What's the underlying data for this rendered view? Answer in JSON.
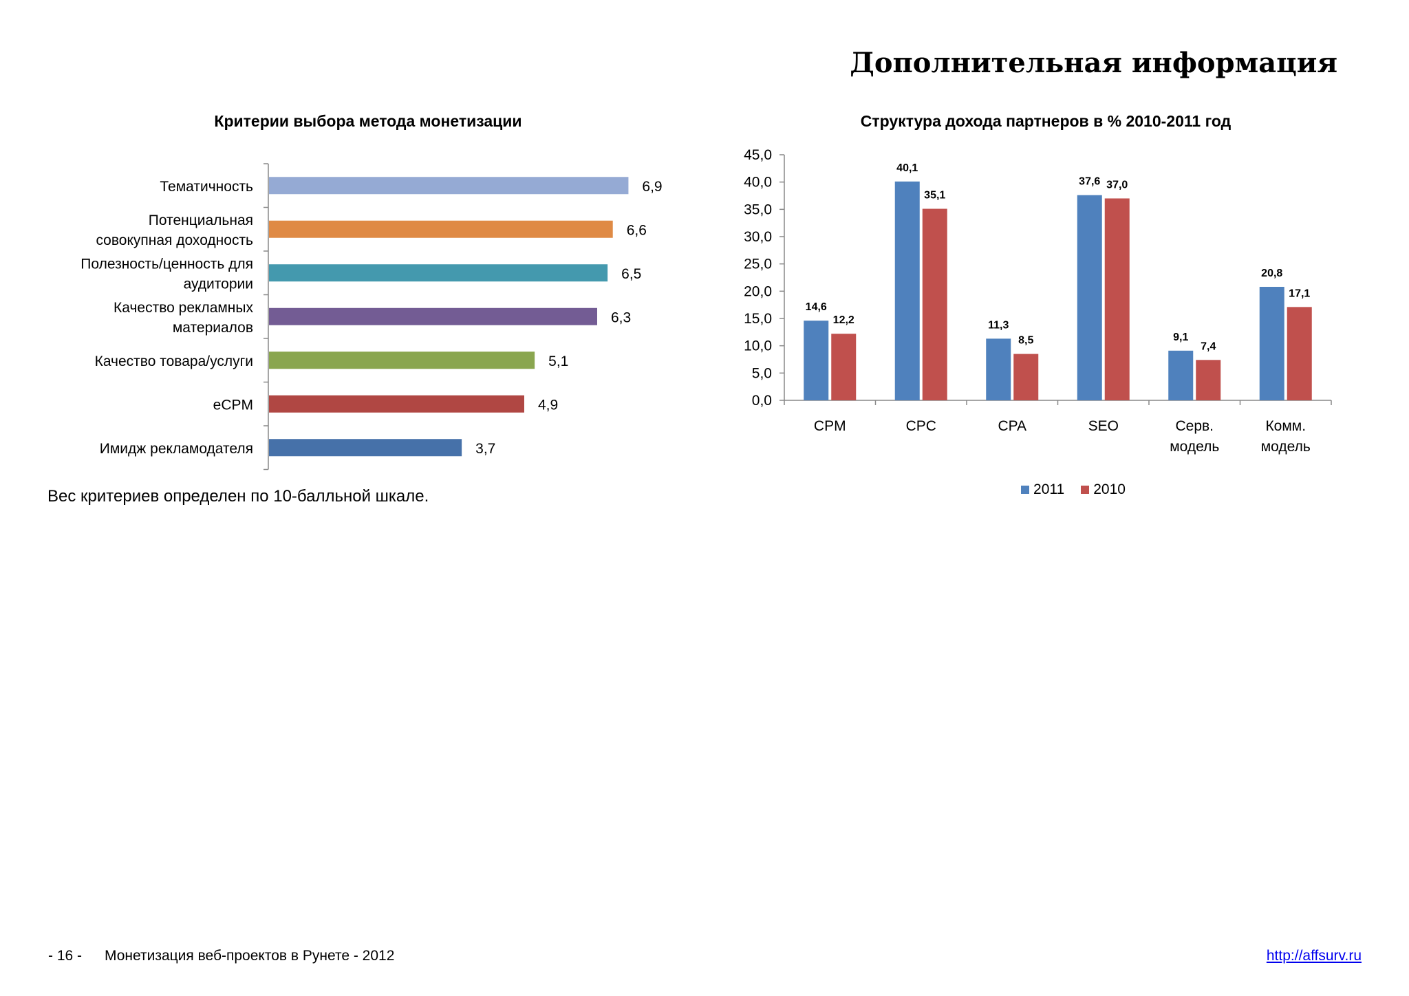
{
  "page": {
    "title": "Дополнительная информация"
  },
  "footnote": "Вес критериев определен по 10-балльной шкале.",
  "footer": {
    "page_number": "- 16 -",
    "text": "Монетизация веб-проектов в Рунете - 2012",
    "link": "http://affsurv.ru"
  },
  "chart_data": [
    {
      "type": "bar",
      "orientation": "horizontal",
      "title": "Критерии выбора метода монетизации",
      "categories": [
        [
          "Тематичность"
        ],
        [
          "Потенциальная",
          "совокупная доходность"
        ],
        [
          "Полезность/ценность для",
          "аудитории"
        ],
        [
          "Качество рекламных",
          "материалов"
        ],
        [
          "Качество товара/услуги"
        ],
        [
          "eCPM"
        ],
        [
          "Имидж рекламодателя"
        ]
      ],
      "values": [
        6.9,
        6.6,
        6.5,
        6.3,
        5.1,
        4.9,
        3.7
      ],
      "value_labels": [
        "6,9",
        "6,6",
        "6,5",
        "6,3",
        "5,1",
        "4,9",
        "3,7"
      ],
      "colors": [
        "#95aad4",
        "#df8a45",
        "#4499ae",
        "#735c94",
        "#8aa64f",
        "#b04743",
        "#4671a9"
      ],
      "xlim": [
        0,
        7.5
      ],
      "grid": false
    },
    {
      "type": "bar",
      "title": "Структура дохода партнеров в % 2010-2011 год",
      "categories": [
        [
          "CPM"
        ],
        [
          "CPC"
        ],
        [
          "CPA"
        ],
        [
          "SEO"
        ],
        [
          "Серв.",
          "модель"
        ],
        [
          "Комм.",
          "модель"
        ]
      ],
      "series": [
        {
          "name": "2011",
          "color": "#4f81bd",
          "values": [
            14.6,
            40.1,
            11.3,
            37.6,
            9.1,
            20.8
          ],
          "value_labels": [
            "14,6",
            "40,1",
            "11,3",
            "37,6",
            "9,1",
            "20,8"
          ]
        },
        {
          "name": "2010",
          "color": "#c0504d",
          "values": [
            12.2,
            35.1,
            8.5,
            37.0,
            7.4,
            17.1
          ],
          "value_labels": [
            "12,2",
            "35,1",
            "8,5",
            "37,0",
            "7,4",
            "17,1"
          ]
        }
      ],
      "ylim": [
        0,
        45
      ],
      "yticks": [
        0,
        5,
        10,
        15,
        20,
        25,
        30,
        35,
        40,
        45
      ],
      "ytick_labels": [
        "0,0",
        "5,0",
        "10,0",
        "15,0",
        "20,0",
        "25,0",
        "30,0",
        "35,0",
        "40,0",
        "45,0"
      ],
      "legend": "bottom",
      "grid": false
    }
  ]
}
